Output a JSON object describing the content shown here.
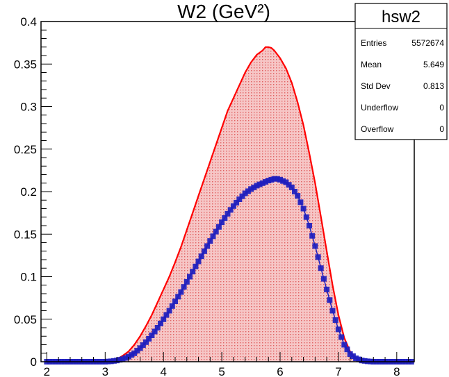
{
  "chart_data": {
    "type": "histogram",
    "title": "W2 (GeV²)",
    "xlim": [
      1.9,
      8.3
    ],
    "ylim": [
      0,
      0.4
    ],
    "xticks": [
      2,
      3,
      4,
      5,
      6,
      7,
      8
    ],
    "yticks": [
      0,
      0.05,
      0.1,
      0.15,
      0.2,
      0.25,
      0.3,
      0.35,
      0.4
    ],
    "ytick_labels": [
      "0",
      "0.05",
      "0.1",
      "0.15",
      "0.2",
      "0.25",
      "0.3",
      "0.35",
      "0.4"
    ],
    "grid": false,
    "colors": {
      "red": "#ff0000",
      "fill": "#f4b6b6",
      "blue": "#1e1ebe"
    },
    "series": [
      {
        "style": "red filled step histogram",
        "x": [
          2.0,
          2.5,
          3.0,
          3.1,
          3.2,
          3.3,
          3.4,
          3.5,
          3.6,
          3.7,
          3.8,
          3.9,
          4.0,
          4.1,
          4.2,
          4.3,
          4.4,
          4.5,
          4.6,
          4.7,
          4.8,
          4.9,
          5.0,
          5.1,
          5.2,
          5.3,
          5.4,
          5.5,
          5.6,
          5.7,
          5.75,
          5.8,
          5.85,
          5.9,
          6.0,
          6.1,
          6.2,
          6.3,
          6.4,
          6.5,
          6.6,
          6.7,
          6.8,
          6.9,
          7.0,
          7.1,
          7.2,
          7.3,
          7.4,
          7.5,
          7.6,
          7.7,
          8.0,
          8.3
        ],
        "y": [
          0.0,
          0.0,
          0.0,
          0.001,
          0.003,
          0.007,
          0.012,
          0.02,
          0.03,
          0.042,
          0.055,
          0.07,
          0.085,
          0.1,
          0.117,
          0.135,
          0.155,
          0.175,
          0.195,
          0.215,
          0.235,
          0.255,
          0.275,
          0.295,
          0.31,
          0.325,
          0.34,
          0.352,
          0.361,
          0.366,
          0.37,
          0.37,
          0.369,
          0.366,
          0.357,
          0.345,
          0.328,
          0.305,
          0.278,
          0.245,
          0.21,
          0.17,
          0.13,
          0.09,
          0.055,
          0.028,
          0.012,
          0.004,
          0.001,
          0.0,
          0.0,
          0.0,
          0.0,
          0.0
        ]
      },
      {
        "style": "blue square markers",
        "x": [
          2.0,
          2.5,
          3.0,
          3.1,
          3.2,
          3.3,
          3.4,
          3.5,
          3.6,
          3.7,
          3.8,
          3.9,
          4.0,
          4.1,
          4.2,
          4.3,
          4.4,
          4.5,
          4.6,
          4.7,
          4.8,
          4.9,
          5.0,
          5.1,
          5.2,
          5.3,
          5.4,
          5.5,
          5.6,
          5.7,
          5.8,
          5.9,
          5.95,
          6.0,
          6.1,
          6.2,
          6.3,
          6.4,
          6.5,
          6.6,
          6.7,
          6.8,
          6.9,
          7.0,
          7.1,
          7.2,
          7.3,
          7.4,
          7.5,
          7.6,
          8.0,
          8.3
        ],
        "y": [
          0.0,
          0.0,
          0.0,
          0.0005,
          0.0015,
          0.003,
          0.006,
          0.01,
          0.016,
          0.023,
          0.031,
          0.04,
          0.05,
          0.06,
          0.071,
          0.082,
          0.094,
          0.106,
          0.118,
          0.13,
          0.142,
          0.153,
          0.164,
          0.174,
          0.183,
          0.191,
          0.198,
          0.203,
          0.207,
          0.21,
          0.213,
          0.215,
          0.215,
          0.214,
          0.211,
          0.205,
          0.195,
          0.18,
          0.16,
          0.136,
          0.11,
          0.085,
          0.06,
          0.038,
          0.02,
          0.009,
          0.004,
          0.0015,
          0.0005,
          0.0,
          0.0,
          0.0
        ]
      }
    ]
  },
  "stats_box": {
    "title": "hsw2",
    "rows": [
      {
        "label": "Entries",
        "value": "5572674"
      },
      {
        "label": "Mean",
        "value": "5.649"
      },
      {
        "label": "Std Dev",
        "value": "0.813"
      },
      {
        "label": "Underflow",
        "value": "0"
      },
      {
        "label": "Overflow",
        "value": "0"
      }
    ]
  }
}
